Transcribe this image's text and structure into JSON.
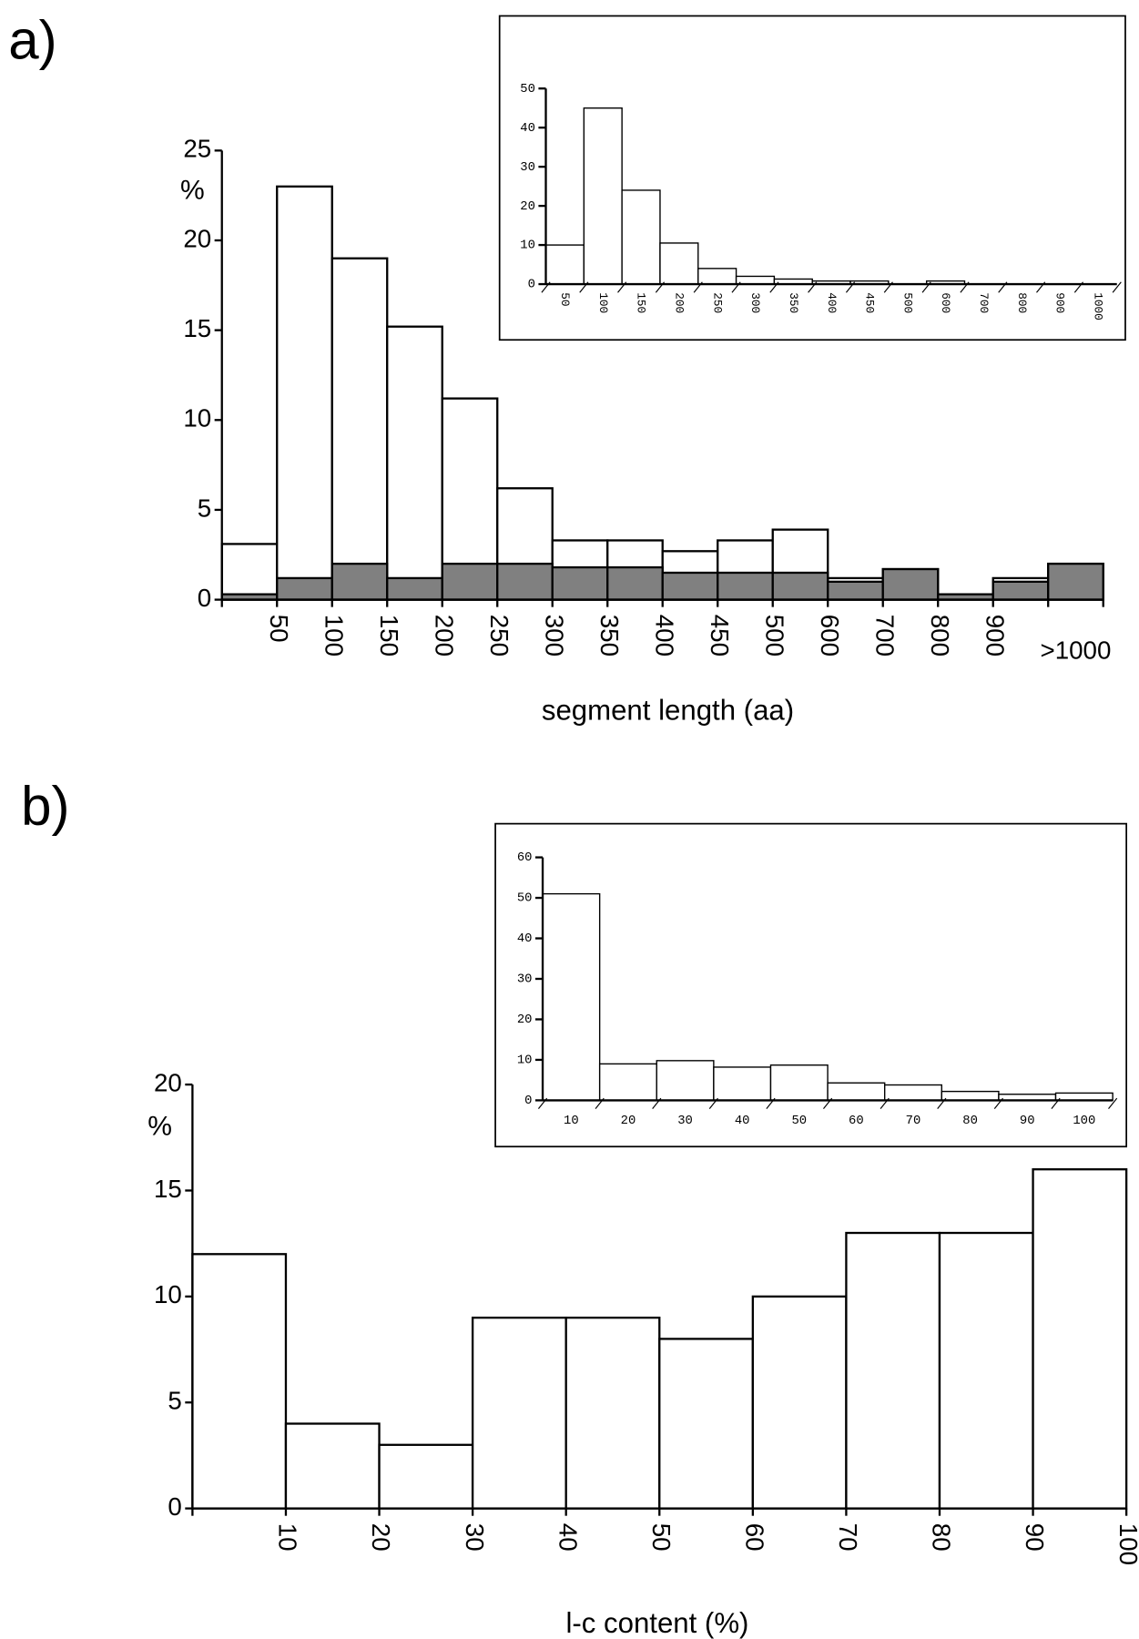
{
  "panels": [
    "a)",
    "b)"
  ],
  "chart_data": [
    {
      "type": "bar",
      "ylabel": "%",
      "xlabel": "segment length (aa)",
      "categories": [
        "50",
        "100",
        "150",
        "200",
        "250",
        "300",
        "350",
        "400",
        "450",
        "500",
        "600",
        "700",
        "800",
        "900",
        null,
        ">1000"
      ],
      "series": [
        {
          "color": "#ffffff",
          "values": [
            3.1,
            23,
            19,
            15.2,
            11.2,
            6.2,
            3.3,
            3.3,
            2.7,
            3.3,
            3.9,
            1.2,
            1.7,
            0.3,
            1.2,
            2.0
          ]
        },
        {
          "color": "#808080",
          "values": [
            0.3,
            1.2,
            2.0,
            1.2,
            2.0,
            2.0,
            1.8,
            1.8,
            1.5,
            1.5,
            1.5,
            1.0,
            1.7,
            0.3,
            1.0,
            2.0
          ]
        }
      ],
      "ylim": [
        0,
        25
      ],
      "yticks": [
        0,
        5,
        10,
        15,
        20,
        25
      ]
    },
    {
      "type": "bar",
      "categories": [
        "50",
        "100",
        "150",
        "200",
        "250",
        "300",
        "350",
        "400",
        "450",
        "500",
        "600",
        "700",
        "800",
        "900",
        "1000"
      ],
      "series": [
        {
          "color": "#ffffff",
          "values": [
            10,
            45,
            24,
            10.5,
            4,
            2,
            1.3,
            0.8,
            0.8,
            0,
            0.8,
            0,
            0,
            0,
            0
          ]
        }
      ],
      "ylim": [
        0,
        50
      ],
      "yticks": [
        0,
        10,
        20,
        30,
        40,
        50
      ]
    },
    {
      "type": "bar",
      "ylabel": "%",
      "xlabel": "l-c content (%)",
      "categories": [
        "10",
        "20",
        "30",
        "40",
        "50",
        "60",
        "70",
        "80",
        "90",
        "100"
      ],
      "series": [
        {
          "color": "#ffffff",
          "values": [
            12,
            4,
            3,
            9,
            9,
            8,
            10,
            13,
            13,
            16
          ]
        }
      ],
      "ylim": [
        0,
        20
      ],
      "yticks": [
        0,
        5,
        10,
        15,
        20
      ]
    },
    {
      "type": "bar",
      "categories": [
        "10",
        "20",
        "30",
        "40",
        "50",
        "60",
        "70",
        "80",
        "90",
        "100"
      ],
      "series": [
        {
          "color": "#ffffff",
          "values": [
            51,
            9,
            9.8,
            8.2,
            8.7,
            4.3,
            3.8,
            2.2,
            1.5,
            1.8
          ]
        }
      ],
      "ylim": [
        0,
        60
      ],
      "yticks": [
        0,
        10,
        20,
        30,
        40,
        50,
        60
      ]
    }
  ]
}
